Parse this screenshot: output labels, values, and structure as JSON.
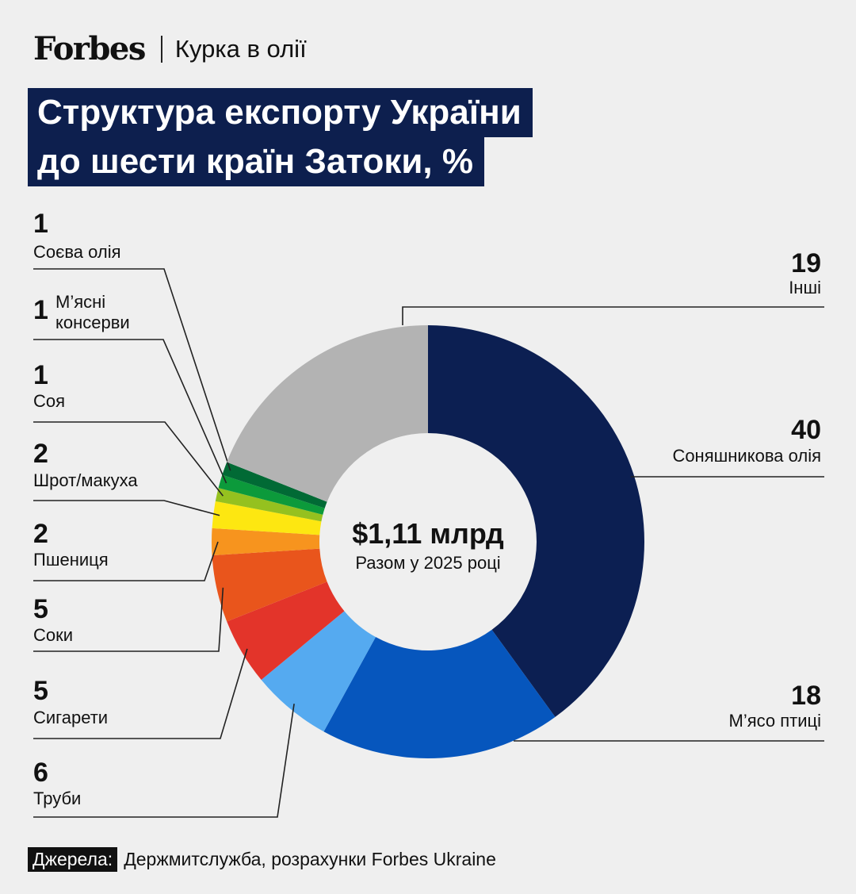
{
  "header": {
    "logo": "Forbes",
    "section": "Курка в олії"
  },
  "title_lines": [
    "Структура експорту України",
    "до шести країн Затоки, %"
  ],
  "center": {
    "value": "$1,11 млрд",
    "subtitle": "Разом у 2025 році"
  },
  "source": {
    "label": "Джерела:",
    "text": "Держмитслужба, розрахунки Forbes Ukraine"
  },
  "chart_data": {
    "type": "pie",
    "title": "Структура експорту України до шести країн Затоки, %",
    "total_label": "$1,11 млрд",
    "series": [
      {
        "name": "Соняшникова олія",
        "value": 40,
        "color": "#0c1f52",
        "label_lines": [
          "Соняшникова олія"
        ]
      },
      {
        "name": "М’ясо птиці",
        "value": 18,
        "color": "#0656bd",
        "label_lines": [
          "М’ясо птиці"
        ]
      },
      {
        "name": "Труби",
        "value": 6,
        "color": "#55aaf0",
        "label_lines": [
          "Труби"
        ]
      },
      {
        "name": "Сигарети",
        "value": 5,
        "color": "#e3342a",
        "label_lines": [
          "Сигарети"
        ]
      },
      {
        "name": "Соки",
        "value": 5,
        "color": "#e9551c",
        "label_lines": [
          "Соки"
        ]
      },
      {
        "name": "Пшениця",
        "value": 2,
        "color": "#f7941e",
        "label_lines": [
          "Пшениця"
        ]
      },
      {
        "name": "Шрот/макуха",
        "value": 2,
        "color": "#fde711",
        "label_lines": [
          "Шрот/макуха"
        ]
      },
      {
        "name": "Соя",
        "value": 1,
        "color": "#95c11f",
        "label_lines": [
          "Соя"
        ]
      },
      {
        "name": "М’ясні консерви",
        "value": 1,
        "color": "#0c9a3b",
        "label_lines": [
          "М’ясні",
          "консерви"
        ]
      },
      {
        "name": "Соєва олія",
        "value": 1,
        "color": "#016a35",
        "label_lines": [
          "Соєва олія"
        ]
      },
      {
        "name": "Інші",
        "value": 19,
        "color": "#b3b3b3",
        "label_lines": [
          "Інші"
        ]
      }
    ]
  }
}
